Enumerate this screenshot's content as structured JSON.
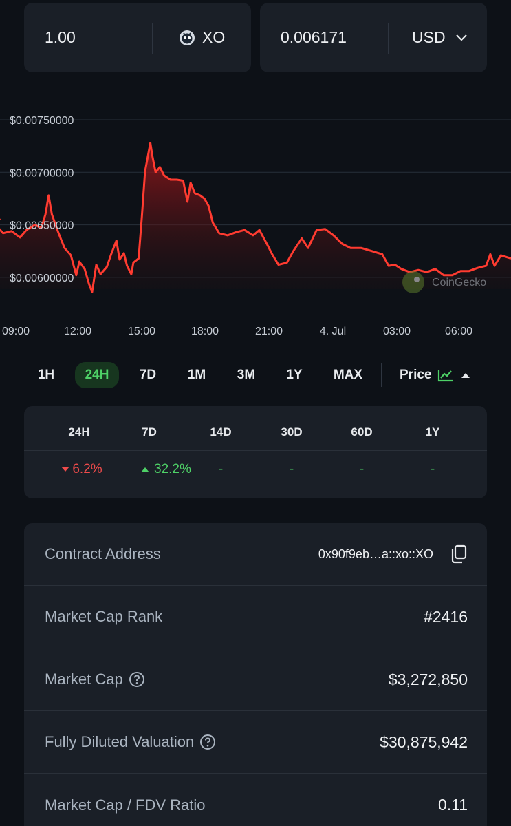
{
  "converter": {
    "amount": "1.00",
    "token": "XO",
    "fiat_amount": "0.006171",
    "fiat": "USD"
  },
  "chart_data": {
    "type": "area",
    "y_ticks": [
      "$0.00750000",
      "$0.00700000",
      "$0.00650000",
      "$0.00600000"
    ],
    "x_ticks": [
      "09:00",
      "12:00",
      "15:00",
      "18:00",
      "21:00",
      "4. Jul",
      "03:00",
      "06:00"
    ],
    "ylim": [
      0.00585,
      0.0075
    ],
    "watermark": "CoinGecko",
    "line_color": "#ff3b30",
    "points": [
      [
        7.5,
        0.00656
      ],
      [
        8.0,
        0.00651
      ],
      [
        8.4,
        0.00642
      ],
      [
        8.8,
        0.00644
      ],
      [
        9.2,
        0.00638
      ],
      [
        9.5,
        0.00645
      ],
      [
        9.9,
        0.0065
      ],
      [
        10.2,
        0.00647
      ],
      [
        10.4,
        0.0066
      ],
      [
        10.55,
        0.00678
      ],
      [
        10.7,
        0.0066
      ],
      [
        11.0,
        0.00643
      ],
      [
        11.3,
        0.00628
      ],
      [
        11.6,
        0.00621
      ],
      [
        11.85,
        0.00602
      ],
      [
        12.0,
        0.00615
      ],
      [
        12.25,
        0.00608
      ],
      [
        12.45,
        0.00594
      ],
      [
        12.6,
        0.00586
      ],
      [
        12.8,
        0.00612
      ],
      [
        13.0,
        0.00603
      ],
      [
        13.3,
        0.0061
      ],
      [
        13.5,
        0.00622
      ],
      [
        13.75,
        0.00635
      ],
      [
        13.9,
        0.00617
      ],
      [
        14.1,
        0.00623
      ],
      [
        14.25,
        0.00611
      ],
      [
        14.45,
        0.00603
      ],
      [
        14.55,
        0.00614
      ],
      [
        14.8,
        0.00618
      ],
      [
        14.95,
        0.00658
      ],
      [
        15.1,
        0.00701
      ],
      [
        15.25,
        0.00717
      ],
      [
        15.35,
        0.00728
      ],
      [
        15.45,
        0.00715
      ],
      [
        15.6,
        0.007
      ],
      [
        15.8,
        0.00705
      ],
      [
        16.0,
        0.00697
      ],
      [
        16.3,
        0.00693
      ],
      [
        16.6,
        0.00693
      ],
      [
        16.9,
        0.00692
      ],
      [
        17.1,
        0.00672
      ],
      [
        17.25,
        0.0069
      ],
      [
        17.45,
        0.0068
      ],
      [
        17.7,
        0.00678
      ],
      [
        17.9,
        0.00675
      ],
      [
        18.1,
        0.00668
      ],
      [
        18.3,
        0.00652
      ],
      [
        18.6,
        0.00642
      ],
      [
        19.0,
        0.0064
      ],
      [
        19.4,
        0.00643
      ],
      [
        19.8,
        0.00645
      ],
      [
        20.2,
        0.0064
      ],
      [
        20.5,
        0.00645
      ],
      [
        20.9,
        0.0063
      ],
      [
        21.1,
        0.00622
      ],
      [
        21.4,
        0.00612
      ],
      [
        21.8,
        0.00614
      ],
      [
        22.1,
        0.00625
      ],
      [
        22.5,
        0.00637
      ],
      [
        22.8,
        0.00628
      ],
      [
        23.2,
        0.00645
      ],
      [
        23.6,
        0.00646
      ],
      [
        24.0,
        0.0064
      ],
      [
        24.4,
        0.00632
      ],
      [
        24.8,
        0.00628
      ],
      [
        25.3,
        0.00628
      ],
      [
        25.8,
        0.00625
      ],
      [
        26.3,
        0.00622
      ],
      [
        26.6,
        0.00611
      ],
      [
        26.9,
        0.00612
      ],
      [
        27.2,
        0.00608
      ],
      [
        27.6,
        0.00605
      ],
      [
        28.0,
        0.00607
      ],
      [
        28.4,
        0.00605
      ],
      [
        28.8,
        0.00608
      ],
      [
        29.2,
        0.00602
      ],
      [
        29.6,
        0.00602
      ],
      [
        30.0,
        0.00606
      ],
      [
        30.4,
        0.00606
      ],
      [
        30.8,
        0.00609
      ],
      [
        31.2,
        0.00611
      ],
      [
        31.4,
        0.00622
      ],
      [
        31.6,
        0.00611
      ],
      [
        31.9,
        0.00621
      ],
      [
        32.2,
        0.00618
      ]
    ]
  },
  "tabs": [
    "1H",
    "24H",
    "7D",
    "1M",
    "3M",
    "1Y",
    "MAX"
  ],
  "active_tab": "24H",
  "price_selector": "Price",
  "changes": {
    "headers": [
      "24H",
      "7D",
      "14D",
      "30D",
      "60D",
      "1Y"
    ],
    "values": [
      "6.2%",
      "32.2%",
      "-",
      "-",
      "-",
      "-"
    ]
  },
  "stats": {
    "contract_label": "Contract Address",
    "contract_value": "0x90f9eb…a::xo::XO",
    "rank_label": "Market Cap Rank",
    "rank_value": "#2416",
    "mcap_label": "Market Cap",
    "mcap_value": "$3,272,850",
    "fdv_label": "Fully Diluted Valuation",
    "fdv_value": "$30,875,942",
    "ratio_label": "Market Cap / FDV Ratio",
    "ratio_value": "0.11"
  }
}
